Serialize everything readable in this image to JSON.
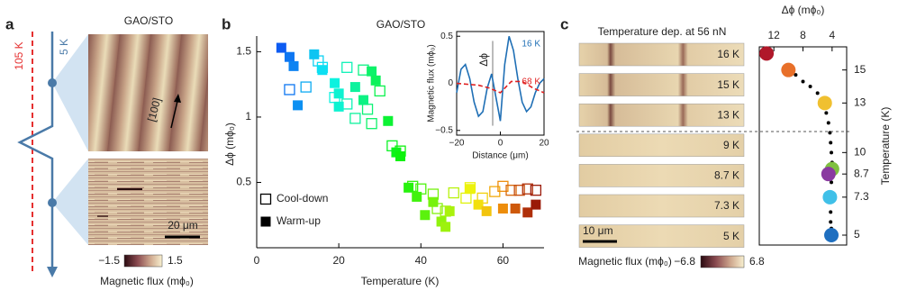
{
  "figure": {
    "panel_labels": [
      "a",
      "b",
      "c"
    ],
    "panel_a": {
      "temperature_labels": [
        "105 K",
        "5 K"
      ],
      "title": "GAO/STO",
      "direction": "[100]",
      "scale_bar": "20 μm",
      "colorbar": {
        "label": "Magnetic flux (mϕ₀)",
        "ticks": [
          {
            "value": -1.5,
            "label": "−1.5"
          },
          1.5
        ]
      }
    },
    "panel_c": {
      "title": "Temperature dep. at 56 nN",
      "strip_labels": [
        "16 K",
        "15 K",
        "13 K",
        "9 K",
        "8.7 K",
        "7.3 K",
        "5 K"
      ],
      "scale_bar": "10 μm",
      "colorbar": {
        "label": "Magnetic flux (mϕ₀)",
        "ticks": [
          {
            "value": -6.8,
            "label": "−6.8"
          },
          6.8
        ]
      }
    }
  },
  "chart_data": [
    {
      "type": "scatter",
      "title": "GAO/STO",
      "x_label": "Temperature (K)",
      "y_label": "Δϕ (mϕ₀)",
      "xlim": [
        0,
        70
      ],
      "ylim": [
        0,
        1.62
      ],
      "xticks": [
        0,
        20,
        40,
        60
      ],
      "yticks": [
        0.5,
        1,
        1.5
      ],
      "colormap": "rainbow",
      "legend": "lower left",
      "series": [
        {
          "name": "Cool-down",
          "marker": "open-square",
          "color": "#000000",
          "x": [
            8,
            12,
            15,
            16,
            19,
            22,
            22,
            24,
            26,
            27,
            28,
            30,
            33,
            35,
            38,
            40,
            43,
            44,
            46,
            48,
            51,
            52,
            55,
            58,
            60,
            62,
            64,
            66,
            68
          ],
          "values": [
            1.21,
            1.23,
            1.43,
            1.38,
            1.15,
            1.38,
            1.1,
            0.99,
            1.36,
            1.06,
            0.95,
            1.2,
            0.78,
            0.74,
            0.47,
            0.45,
            0.41,
            0.3,
            0.28,
            0.42,
            0.38,
            0.46,
            0.38,
            0.43,
            0.47,
            0.44,
            0.44,
            0.45,
            0.44
          ]
        },
        {
          "name": "Warm-up",
          "marker": "filled-square",
          "color": "#000000",
          "x": [
            6,
            8,
            9,
            10,
            14,
            16,
            19,
            20,
            20,
            24,
            26,
            28,
            29,
            32,
            34,
            35,
            37,
            39,
            41,
            43,
            45,
            46,
            47,
            52,
            54,
            56,
            60,
            63,
            66,
            68
          ],
          "values": [
            1.53,
            1.46,
            1.39,
            1.09,
            1.48,
            1.36,
            1.26,
            1.18,
            1.08,
            1.23,
            1.13,
            1.35,
            1.28,
            0.97,
            0.73,
            0.7,
            0.46,
            0.39,
            0.25,
            0.35,
            0.2,
            0.16,
            0.28,
            0.45,
            0.33,
            0.28,
            0.3,
            0.3,
            0.27,
            0.33
          ]
        }
      ]
    },
    {
      "type": "line",
      "x_label": "Distance (μm)",
      "y_label": "Magnetic flux (mϕ₀)",
      "annotation": "Δϕ",
      "xlim": [
        -20,
        20
      ],
      "ylim": [
        -0.55,
        0.55
      ],
      "xticks": [
        {
          "value": -20,
          "label": "−20"
        },
        0,
        20
      ],
      "yticks": [
        {
          "value": -0.5,
          "label": "−0.5"
        },
        0,
        0.5
      ],
      "series": [
        {
          "name": "16 K",
          "color": "#1f6fb5",
          "dashed": false,
          "x": [
            -20,
            -18,
            -16,
            -14,
            -12,
            -10,
            -8,
            -6,
            -4,
            -2,
            0,
            2,
            4,
            6,
            8,
            10,
            12,
            14,
            16,
            18,
            20
          ],
          "values": [
            -0.1,
            0.15,
            0.2,
            0.05,
            -0.2,
            -0.35,
            -0.3,
            -0.05,
            0.1,
            -0.15,
            -0.4,
            0.2,
            0.5,
            0.35,
            0.05,
            -0.2,
            -0.3,
            -0.25,
            -0.1,
            0.0,
            0.05
          ]
        },
        {
          "name": "68 K",
          "color": "#e02020",
          "dashed": true,
          "x": [
            -20,
            -10,
            -5,
            0,
            5,
            10,
            15,
            20
          ],
          "values": [
            0,
            -0.02,
            -0.05,
            -0.1,
            0.02,
            0.02,
            -0.05,
            -0.1
          ]
        }
      ]
    },
    {
      "type": "scatter",
      "x_label": "Δϕ (mϕ₀)",
      "y_label": "Temperature (K)",
      "xlim": [
        14,
        2
      ],
      "ylim": [
        4.4,
        16.4
      ],
      "xticks": [
        12,
        8,
        4
      ],
      "yticks": [
        5,
        7.3,
        8.7,
        10,
        13,
        15
      ],
      "series": [
        {
          "marker": "small-dot",
          "color": "#000000",
          "x": [
            9,
            8,
            7,
            6,
            5.3,
            4.8,
            4.5,
            4.3,
            4.2,
            4.1,
            4,
            4,
            4.1,
            4.2,
            4.2,
            4.2,
            4.2,
            4.1
          ],
          "values": [
            14.7,
            14.3,
            14,
            13.6,
            13,
            12.4,
            11.8,
            11.2,
            10.6,
            10,
            9.4,
            8.8,
            8.2,
            7.6,
            7,
            6.4,
            5.8,
            5.4
          ]
        },
        {
          "marker": "large-circle",
          "x": [
            13,
            10,
            5,
            4,
            4.5,
            4.3,
            4.1
          ],
          "values": [
            16,
            15,
            13,
            9,
            8.7,
            7.3,
            5
          ],
          "colors": [
            "#b0182a",
            "#e8702a",
            "#f0c030",
            "#7fc040",
            "#8a3aa0",
            "#40c0e8",
            "#1f6fc0"
          ]
        }
      ]
    }
  ]
}
